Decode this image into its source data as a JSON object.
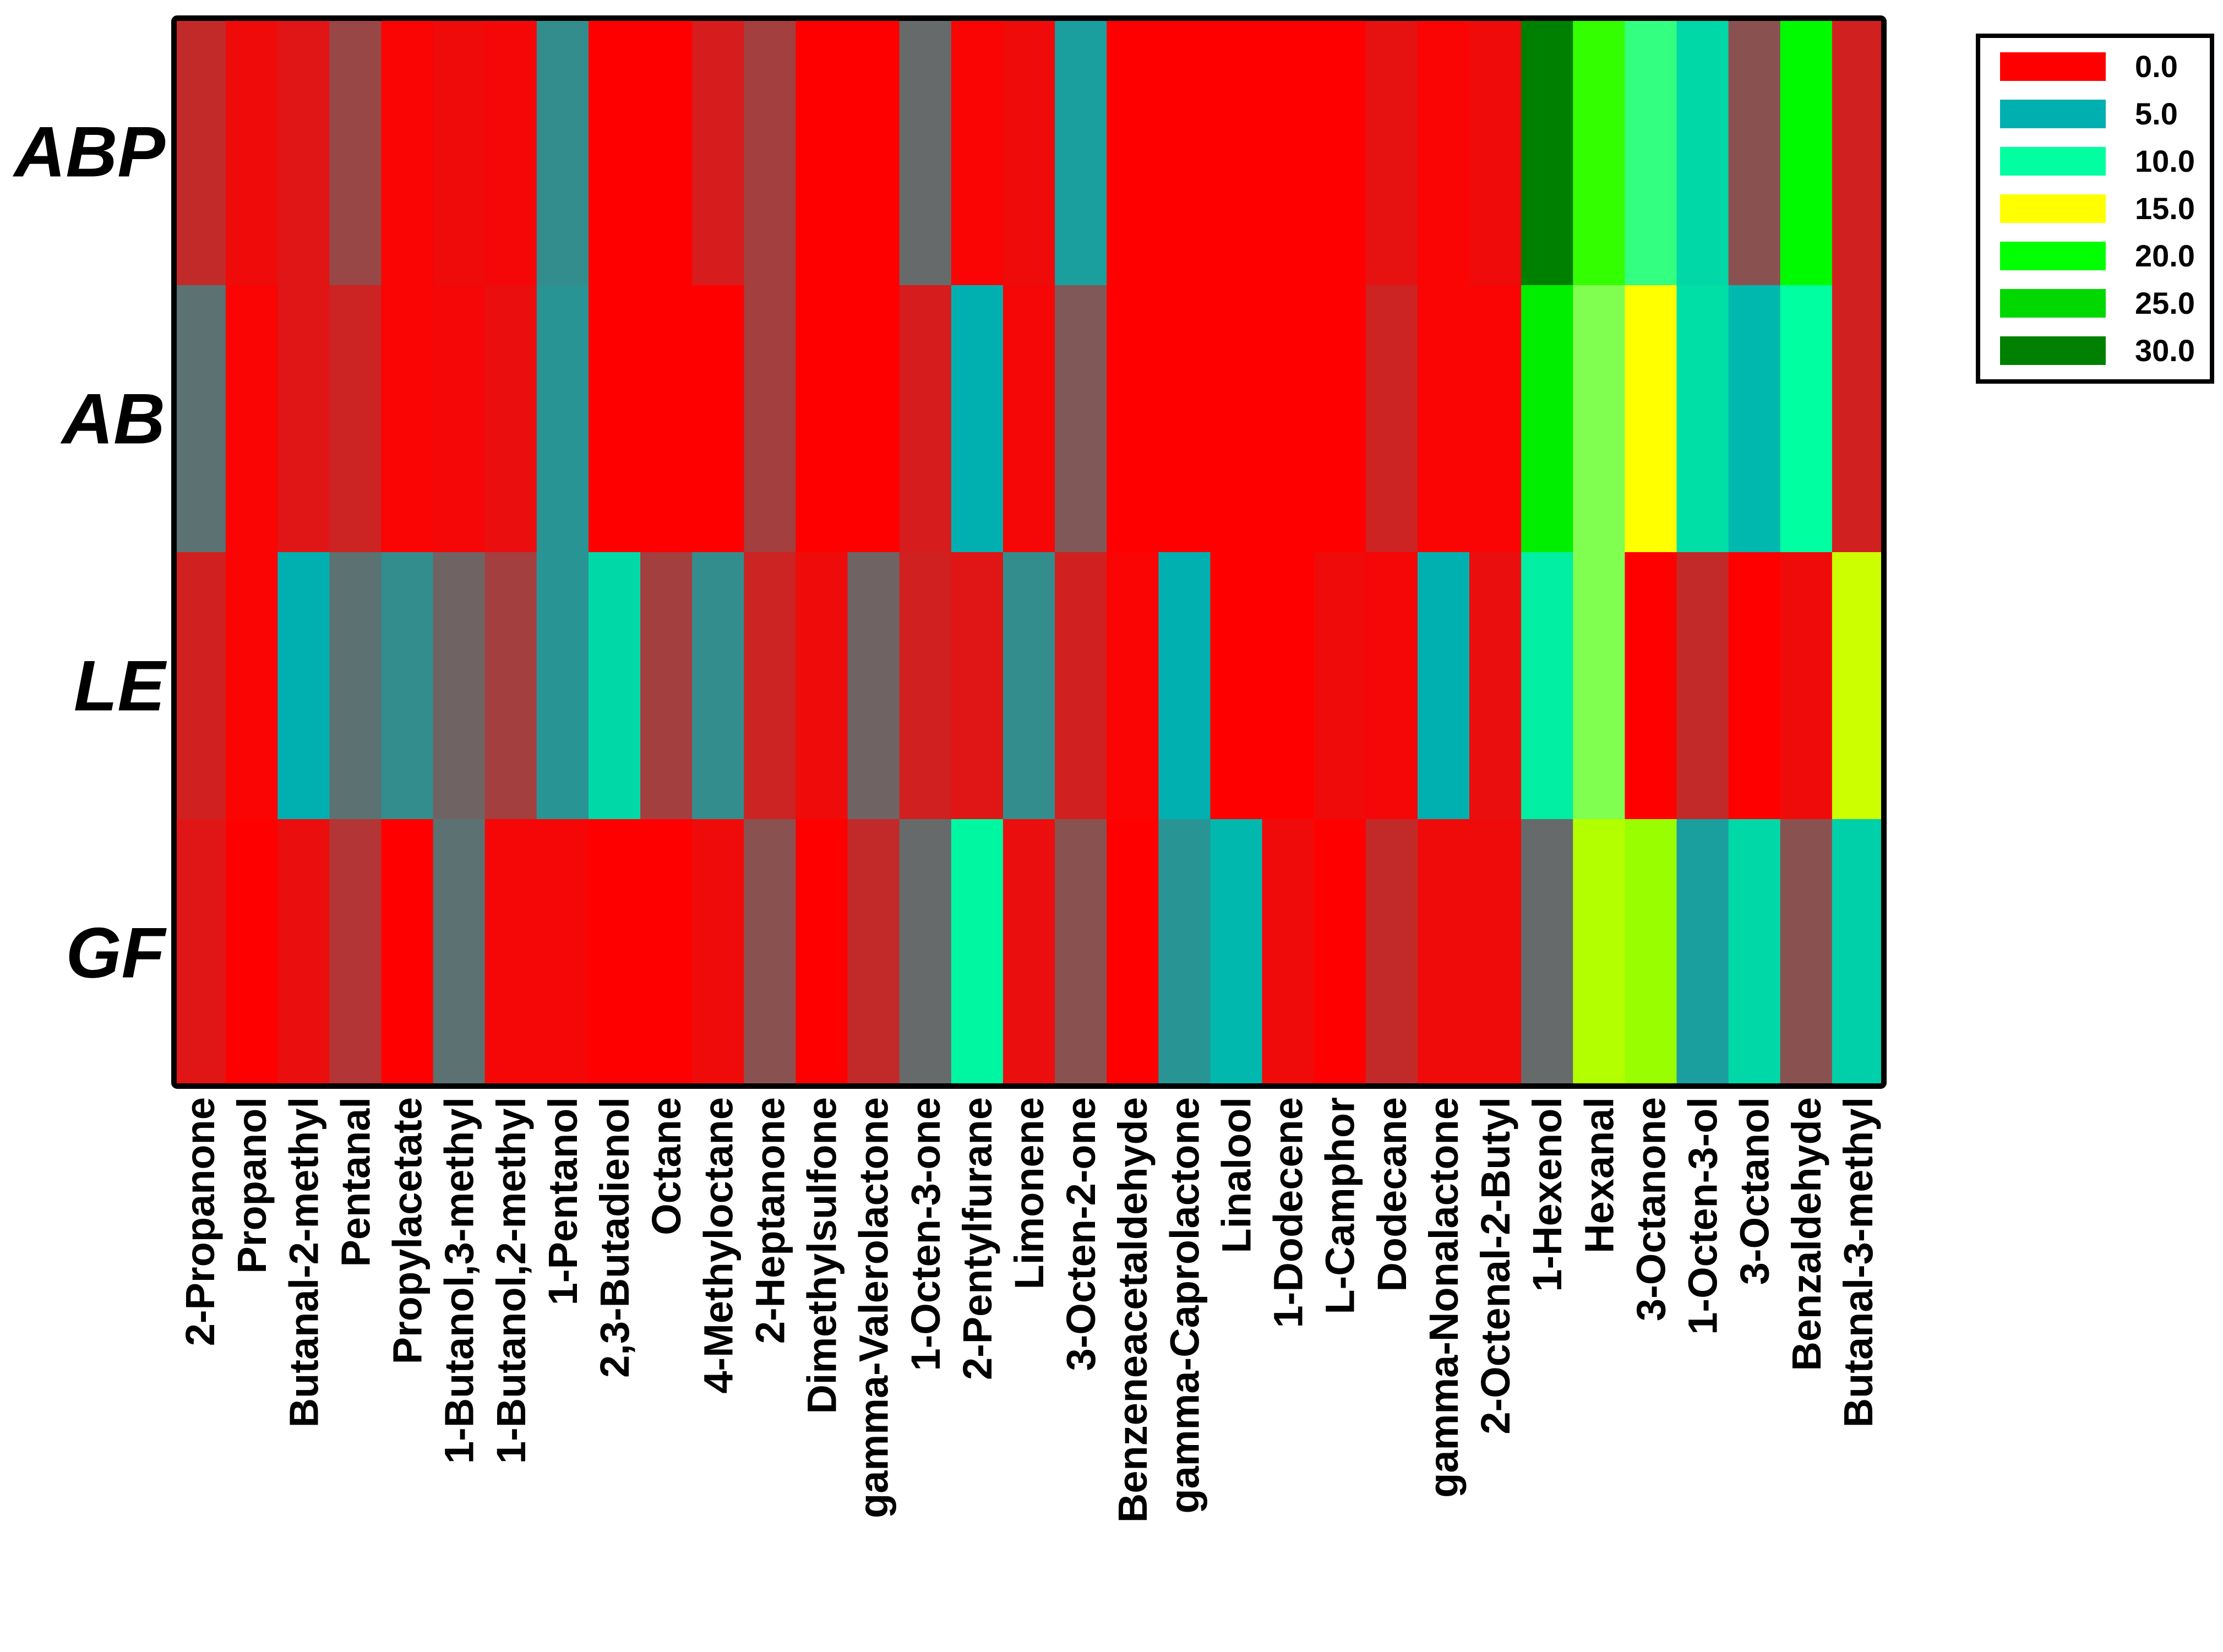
{
  "chart_data": {
    "type": "heatmap",
    "title": "",
    "rows": [
      "ABP",
      "AB",
      "LE",
      "GF"
    ],
    "columns": [
      "2-Propanone",
      "Propanol",
      "Butanal-2-methyl",
      "Pentanal",
      "Propylacetate",
      "1-Butanol,3-methyl",
      "1-Butanol,2-methyl",
      "1-Pentanol",
      "2,3-Butadienol",
      "Octane",
      "4-Methyloctane",
      "2-Heptanone",
      "Dimethylsulfone",
      "gamma-Valerolactone",
      "1-Octen-3-one",
      "2-Pentylfurane",
      "Limonene",
      "3-Octen-2-one",
      "Benzeneacetaldehyde",
      "gamma-Caprolactone",
      "Linalool",
      "1-Dodecene",
      "L-Camphor",
      "Dodecane",
      "gamma-Nonalactone",
      "2-Octenal-2-Butyl",
      "1-Hexenol",
      "Hexanal",
      "3-Octanone",
      "1-Octen-3-ol",
      "3-Octanol",
      "Benzaldehyde",
      "Butanal-3-methyl"
    ],
    "values": [
      [
        1.2,
        0.3,
        0.6,
        2.0,
        0.1,
        0.3,
        0.2,
        4.0,
        0.0,
        0.0,
        0.8,
        1.8,
        0.0,
        0.0,
        3.0,
        0.1,
        0.3,
        4.5,
        0.0,
        0.0,
        0.0,
        0.0,
        0.0,
        0.5,
        0.1,
        0.3,
        32.0,
        19.0,
        11.0,
        7.5,
        2.3,
        20.5,
        0.9
      ],
      [
        3.2,
        0.1,
        0.6,
        1.0,
        0.1,
        0.2,
        0.4,
        4.2,
        0.0,
        0.0,
        0.0,
        1.8,
        0.0,
        0.0,
        0.8,
        5.0,
        0.2,
        2.5,
        0.0,
        0.0,
        0.0,
        0.0,
        0.0,
        1.0,
        0.1,
        0.1,
        22.0,
        12.5,
        15.0,
        8.0,
        5.5,
        10.0,
        0.9
      ],
      [
        0.9,
        0.1,
        5.0,
        3.2,
        4.0,
        2.8,
        1.8,
        4.2,
        7.5,
        1.8,
        4.0,
        1.0,
        0.3,
        2.8,
        0.9,
        0.6,
        4.0,
        0.9,
        0.1,
        5.0,
        0.0,
        0.0,
        0.3,
        0.2,
        5.0,
        0.4,
        9.0,
        12.5,
        0.0,
        1.2,
        0.0,
        0.3,
        16.0
      ],
      [
        0.6,
        0.0,
        0.4,
        1.5,
        0.0,
        3.2,
        0.2,
        0.2,
        0.0,
        0.0,
        0.3,
        2.3,
        0.0,
        1.2,
        3.0,
        9.5,
        0.4,
        2.3,
        0.0,
        4.2,
        5.5,
        0.3,
        0.0,
        1.2,
        0.3,
        0.3,
        3.0,
        16.5,
        17.0,
        4.5,
        7.5,
        2.3,
        7.0
      ]
    ],
    "legend": {
      "position": "top-right",
      "entries": [
        {
          "label": "0.0",
          "value": 0,
          "color": "#ff0000"
        },
        {
          "label": "5.0",
          "value": 5,
          "color": "#00b0b0"
        },
        {
          "label": "10.0",
          "value": 10,
          "color": "#00ffa0"
        },
        {
          "label": "15.0",
          "value": 15,
          "color": "#ffff00"
        },
        {
          "label": "20.0",
          "value": 20,
          "color": "#00ff00"
        },
        {
          "label": "25.0",
          "value": 25,
          "color": "#00d800"
        },
        {
          "label": "30.0",
          "value": 30,
          "color": "#008000"
        }
      ]
    }
  },
  "colors": {
    "border": "#000000",
    "background": "#ffffff"
  }
}
